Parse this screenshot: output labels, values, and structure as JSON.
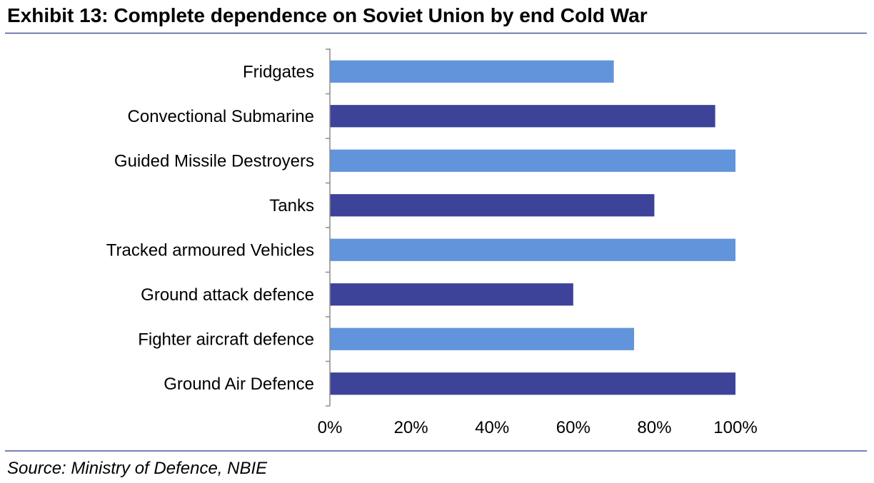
{
  "chart_data": {
    "type": "bar",
    "orientation": "horizontal",
    "title": "Exhibit 13: Complete dependence on Soviet Union by end Cold War",
    "source": "Source: Ministry of Defence, NBIE",
    "categories": [
      "Fridgates",
      "Convectional Submarine",
      "Guided Missile Destroyers",
      "Tanks",
      "Tracked armoured Vehicles",
      "Ground attack defence",
      "Fighter aircraft defence",
      "Ground Air Defence"
    ],
    "values": [
      70,
      95,
      100,
      80,
      100,
      60,
      75,
      100
    ],
    "bar_colors": [
      "#6194da",
      "#3c4399",
      "#6194da",
      "#3c4399",
      "#6194da",
      "#3c4399",
      "#6194da",
      "#3c4399"
    ],
    "xlim": [
      0,
      100
    ],
    "xticks": [
      0,
      20,
      40,
      60,
      80,
      100
    ],
    "xtick_labels": [
      "0%",
      "20%",
      "40%",
      "60%",
      "80%",
      "100%"
    ],
    "xlabel": "",
    "ylabel": "",
    "grid": false,
    "legend": "none"
  }
}
